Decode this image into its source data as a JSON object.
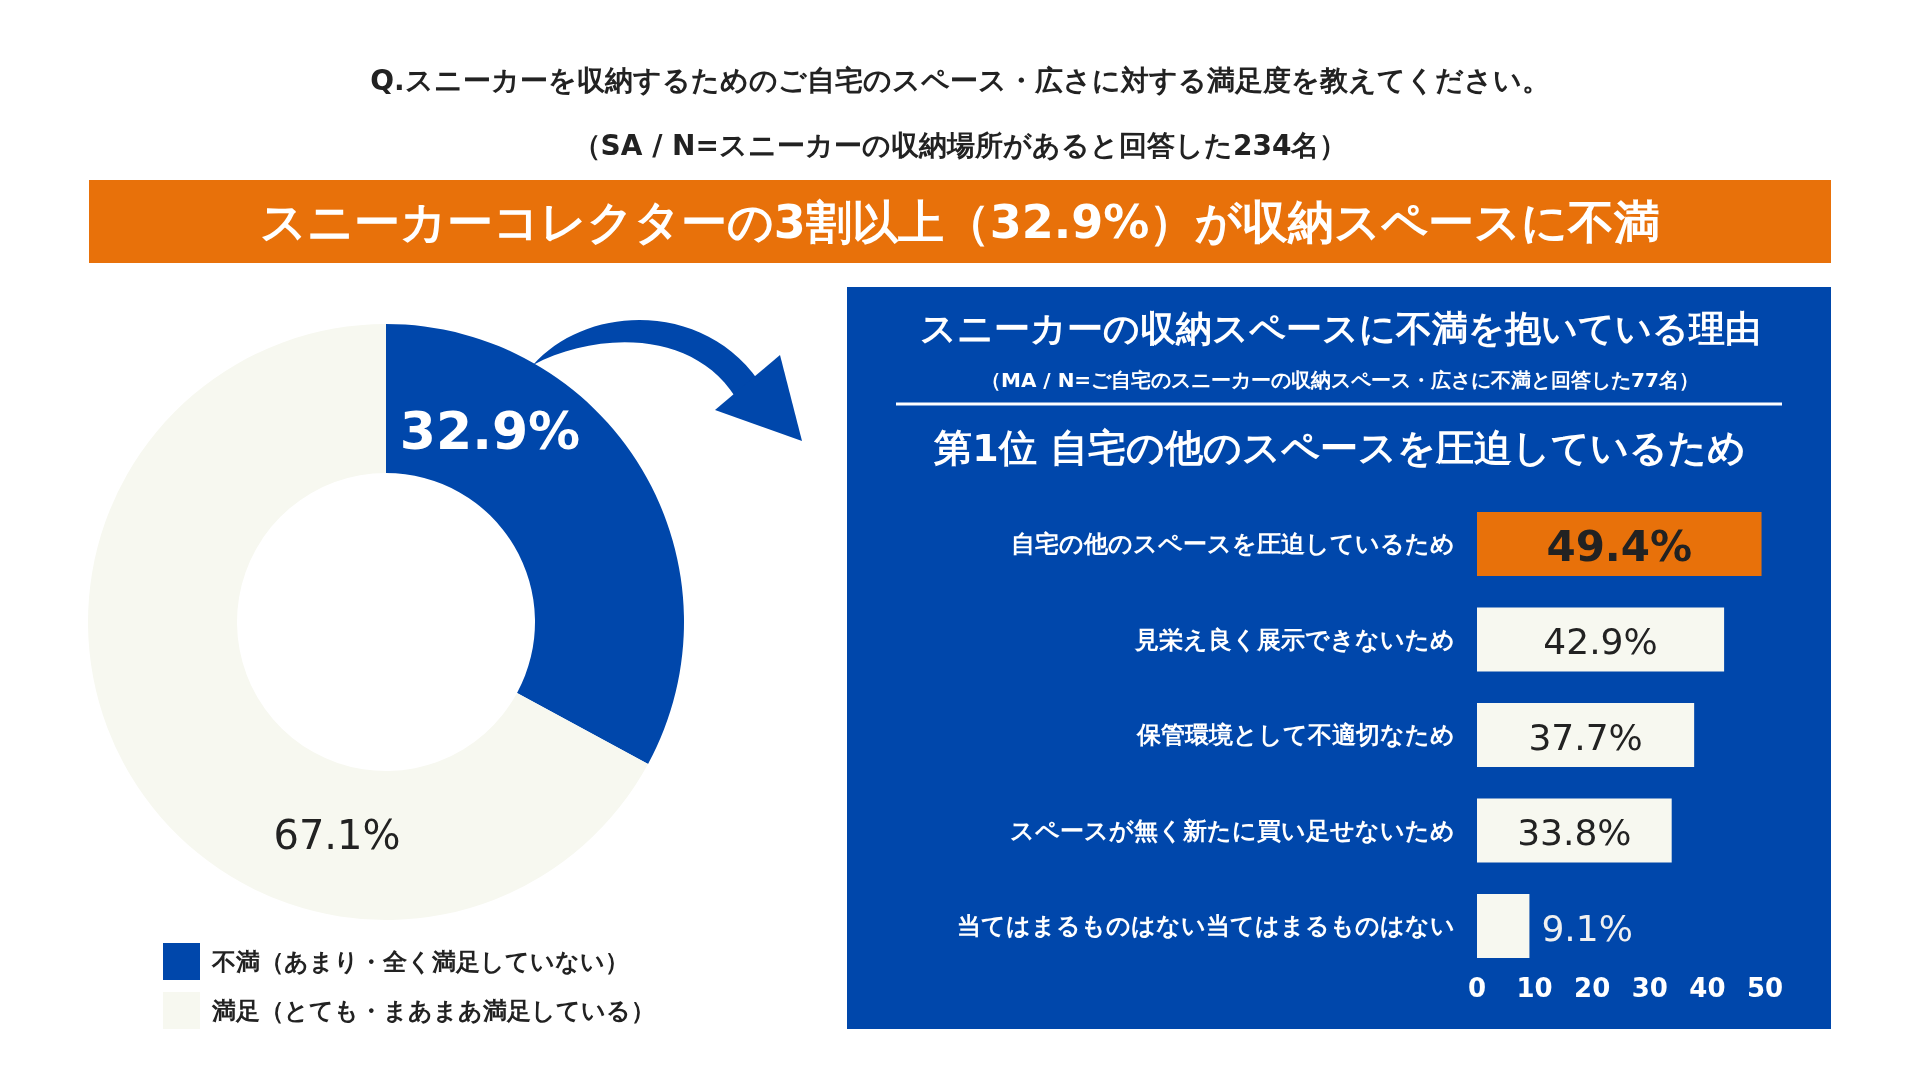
{
  "chart_data": [
    {
      "type": "donut",
      "title": "Q.スニーカーを収納するためのご自宅のスペース・広さに対する満足度を教えてください。",
      "subtitle": "（SA / N=スニーカーの収納場所があると回答した234名）",
      "annotations": [
        "スニーカーコレクターの3割以上（32.9%）が収納スペースに不満"
      ],
      "categories": [
        "不満（あまり・全く満足していない）",
        "満足（とても・まあまあ満足している）"
      ],
      "values": [
        32.9,
        67.1
      ],
      "colors": [
        "#0047ab",
        "#f7f8f0"
      ],
      "value_labels": [
        "32.9%",
        "67.1%"
      ],
      "legend": "bottom left"
    },
    {
      "type": "bar",
      "orientation": "horizontal",
      "title": "スニーカーの収納スペースに不満を抱いている理由",
      "subtitle": "（MA / N=ご自宅のスニーカーの収納スペース・広さに不満と回答した77名）",
      "annotations": [
        "第1位  自宅の他のスペースを圧迫しているため"
      ],
      "categories": [
        "自宅の他のスペースを圧迫しているため",
        "見栄え良く展示できないため",
        "保管環境として不適切なため",
        "スペースが無く新たに買い足せないため",
        "当てはまるものはない当てはまるものはない"
      ],
      "values": [
        49.4,
        42.9,
        37.7,
        33.8,
        9.1
      ],
      "colors": [
        "#e8710a",
        "#f7f8f0",
        "#f7f8f0",
        "#f7f8f0",
        "#f7f8f0"
      ],
      "value_labels": [
        "49.4%",
        "42.9%",
        "37.7%",
        "33.8%",
        "9.1%"
      ],
      "xlim": [
        0,
        50
      ],
      "xticks": [
        0,
        10,
        20,
        30,
        40,
        50
      ]
    }
  ]
}
